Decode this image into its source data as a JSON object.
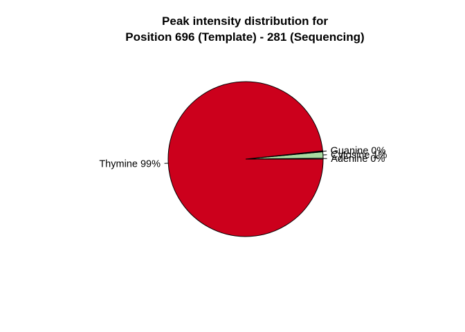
{
  "chart_data": {
    "type": "pie",
    "title": "Peak intensity distribution for",
    "subtitle": "Position 696 (Template) - 281 (Sequencing)",
    "slices": [
      {
        "label": "Adenine 0%",
        "value": 0.2,
        "color": "#ffffff"
      },
      {
        "label": "Cytosine 1%",
        "value": 1.3,
        "color": "#a8dba0"
      },
      {
        "label": "Guanine 0%",
        "value": 0.2,
        "color": "#000000"
      },
      {
        "label": "Thymine 99%",
        "value": 98.3,
        "color": "#cc001c"
      }
    ],
    "start_angle_deg": 0,
    "direction": "counterclockwise",
    "legend": "none"
  }
}
